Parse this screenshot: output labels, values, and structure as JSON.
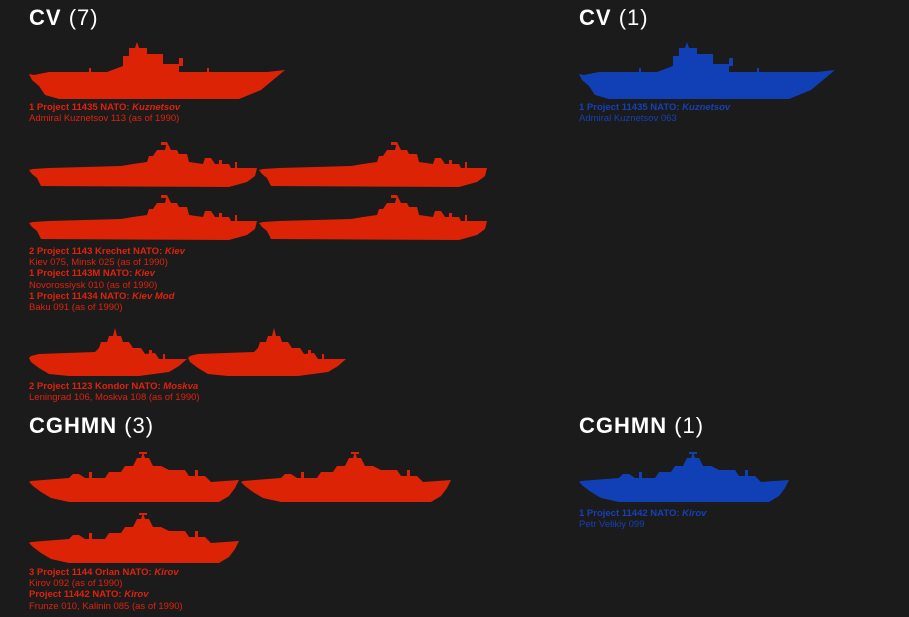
{
  "colors": {
    "background": "#1b1b1c",
    "red": "#dd2306",
    "blue": "#1140b6",
    "heading": "#ffffff"
  },
  "left": {
    "cv": {
      "title": "CV",
      "count": "(7)",
      "groups": [
        {
          "icon": "carrier-kuznetsov-silhouette",
          "lines": [
            {
              "prefix": "1 Project 11435 NATO: ",
              "nato": "Kuznetsov"
            },
            {
              "text": "Admiral Kuznetsov 113 (as of 1990)"
            }
          ]
        },
        {
          "icon": "carrier-kiev-silhouette",
          "lines": [
            {
              "prefix": "2 Project 1143 Krechet  NATO: ",
              "nato": "Kiev"
            },
            {
              "text": "Kiev 075, Minsk 025 (as of 1990)"
            },
            {
              "prefix": "1 Project 1143M  NATO: ",
              "nato": "Kiev"
            },
            {
              "text": "Novorossiysk 010 (as of 1990)"
            },
            {
              "prefix": "1 Project 11434 NATO: ",
              "nato": "Kiev Mod"
            },
            {
              "text": "Baku 091 (as of 1990)"
            }
          ]
        },
        {
          "icon": "helicopter-cruiser-moskva-silhouette",
          "lines": [
            {
              "prefix": "2 Project 1123 Kondor  NATO: ",
              "nato": "Moskva"
            },
            {
              "text": "Leningrad 106, Moskva 108 (as of 1990)"
            }
          ]
        }
      ]
    },
    "cghmn": {
      "title": "CGHMN",
      "count": "(3)",
      "groups": [
        {
          "icon": "battlecruiser-kirov-silhouette",
          "lines": [
            {
              "prefix": "3 Project 1144 Orlan  NATO: ",
              "nato": "Kirov"
            },
            {
              "text": "Kirov 092 (as of 1990)"
            },
            {
              "prefix": "Project 11442  NATO: ",
              "nato": "Kirov"
            },
            {
              "text": "Frunze 010, Kalinin 085 (as of 1990)"
            }
          ]
        }
      ]
    }
  },
  "right": {
    "cv": {
      "title": "CV",
      "count": "(1)",
      "groups": [
        {
          "icon": "carrier-kuznetsov-silhouette",
          "lines": [
            {
              "prefix": "1 Project 11435 NATO: ",
              "nato": "Kuznetsov"
            },
            {
              "text": "Admiral Kuznetsov 063"
            }
          ]
        }
      ]
    },
    "cghmn": {
      "title": "CGHMN",
      "count": "(1)",
      "groups": [
        {
          "icon": "battlecruiser-kirov-silhouette",
          "lines": [
            {
              "prefix": "1 Project 11442  NATO: ",
              "nato": "Kirov"
            },
            {
              "text": "Petr Velikiy 099"
            }
          ]
        }
      ]
    }
  }
}
